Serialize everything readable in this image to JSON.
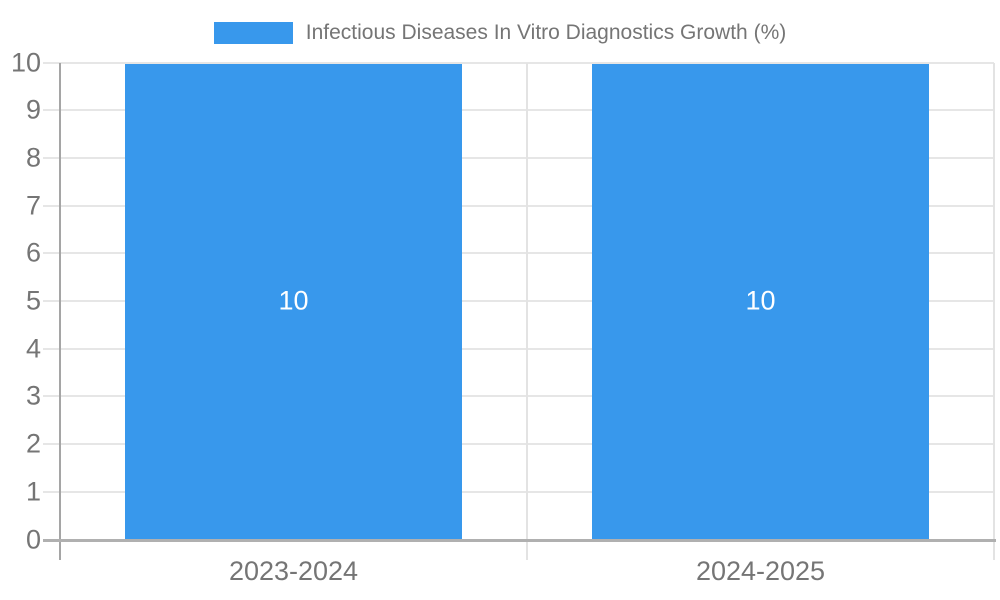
{
  "legend": {
    "label": "Infectious Diseases In Vitro Diagnostics Growth (%)"
  },
  "chart_data": {
    "type": "bar",
    "title": "Infectious Diseases In Vitro Diagnostics Growth (%)",
    "categories": [
      "2023-2024",
      "2024-2025"
    ],
    "series": [
      {
        "name": "Infectious Diseases In Vitro Diagnostics Growth (%)",
        "values": [
          10,
          10
        ]
      }
    ],
    "bar_value_labels": [
      "10",
      "10"
    ],
    "xlabel": "",
    "ylabel": "",
    "ylim": [
      0,
      10
    ],
    "ytick_step": 1,
    "ytick_labels": [
      "0",
      "1",
      "2",
      "3",
      "4",
      "5",
      "6",
      "7",
      "8",
      "9",
      "10"
    ],
    "grid": true,
    "legend_position": "top",
    "colors": {
      "bar": "#3898EC",
      "grid": "#e6e6e6",
      "category_separator": "#e3e3e3",
      "y_axis_line": "#a5a5a5",
      "x_axis_line": "#b0b0b0",
      "axis_label": "#757575",
      "bar_value_label": "#ffffff",
      "background": "#ffffff"
    }
  }
}
